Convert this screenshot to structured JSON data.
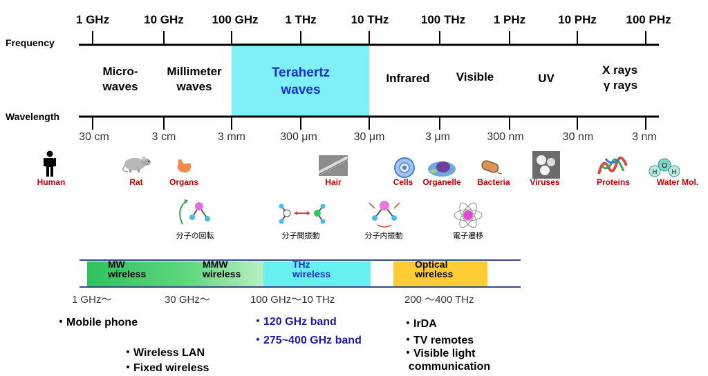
{
  "axes": {
    "frequency_label": "Frequency",
    "wavelength_label": "Wavelength"
  },
  "frequency_ticks": [
    "1 GHz",
    "10 GHz",
    "100 GHz",
    "1 THz",
    "10 THz",
    "100 THz",
    "1 PHz",
    "10 PHz",
    "100 PHz"
  ],
  "wavelength_ticks": [
    "30 cm",
    "3 cm",
    "3 mm",
    "300 μm",
    "30 μm",
    "3 μm",
    "300 nm",
    "30 nm",
    "3 nm"
  ],
  "bands": {
    "microwaves": "Micro-\nwaves",
    "millimeter": "Millimeter\nwaves",
    "terahertz": "Terahertz\nwaves",
    "infrared": "Infrared",
    "visible": "Visible",
    "uv": "UV",
    "xrays": "X rays\nγ rays"
  },
  "objects": {
    "human": "Human",
    "rat": "Rat",
    "organs": "Organs",
    "hair": "Hair",
    "cells": "Cells",
    "organelle": "Organelle",
    "bacteria": "Bacteria",
    "viruses": "Viruses",
    "proteins": "Proteins",
    "water": "Water Mol."
  },
  "molecular_motions": {
    "rotation": "分子の回転",
    "intermolecular": "分子間振動",
    "intramolecular": "分子内振動",
    "electronic": "電子遷移"
  },
  "wireless": {
    "mw": "MW\nwireless",
    "mmw": "MMW\nwireless",
    "thz": "THz\nwireless",
    "optical": "Optical\nwireless",
    "mw_range": "1 GHz～",
    "mmw_range": "30 GHz～",
    "thz_range": "100 GHz～10 THz",
    "optical_range": "200 ～400 THz"
  },
  "applications": {
    "mobile": "・Mobile phone",
    "wlan": "・Wireless LAN",
    "fixed": "・Fixed wireless",
    "band120": "・120 GHz band",
    "band275": "・275~400 GHz band",
    "irda": "・IrDA",
    "tv": "・TV remotes",
    "vlc": "・Visible light\n  communication"
  },
  "colors": {
    "thz_band": "#7ff0f8",
    "mw_green": "#33cc66",
    "thz_cyan": "#66f0f0",
    "optical_yellow": "#ffcc33",
    "object_label": "#c00000",
    "application_blue": "#1a1aa6",
    "terahertz_text": "#1a2ec8"
  }
}
